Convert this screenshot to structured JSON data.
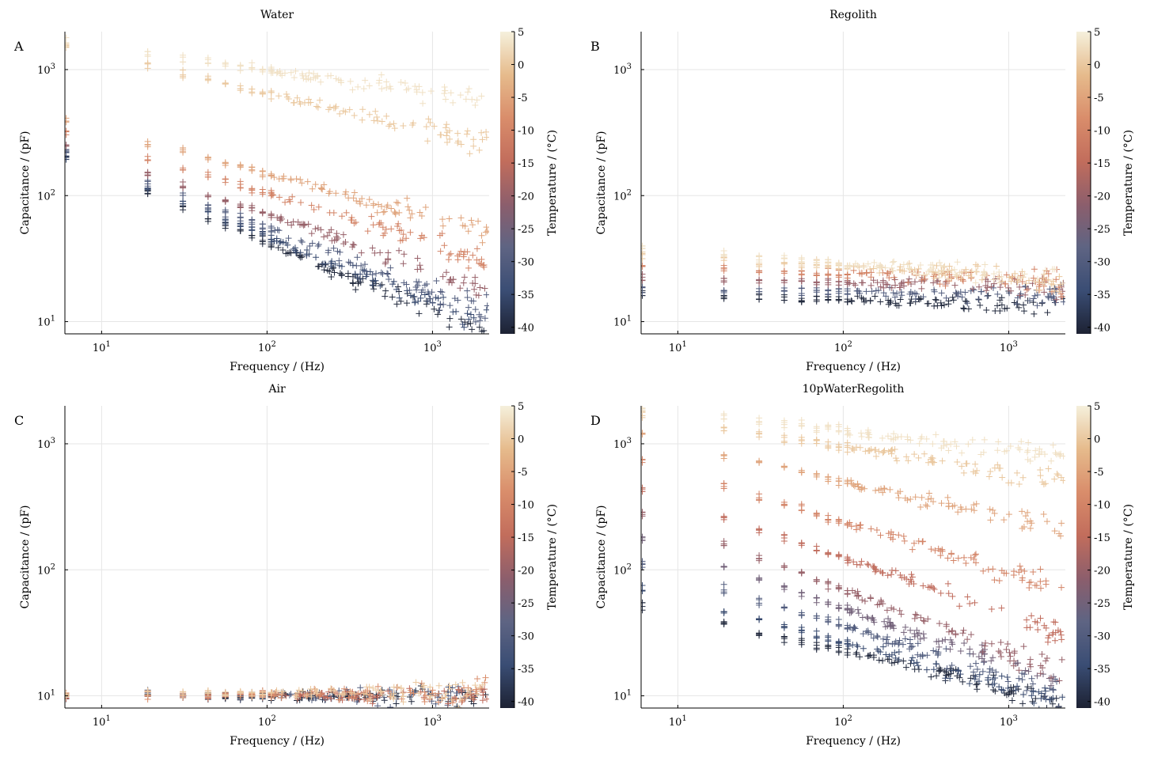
{
  "figure": {
    "background": "#ffffff"
  },
  "colorbar": {
    "label": "Temperature / (°C)",
    "range": [
      -41,
      5
    ],
    "ticks": [
      5,
      0,
      -5,
      -10,
      -15,
      -20,
      -25,
      -30,
      -35,
      -40
    ],
    "tick_labels": [
      "5",
      "0",
      "-5",
      "-10",
      "-15",
      "-20",
      "-25",
      "-30",
      "-35",
      "-40"
    ],
    "colormap": [
      "#1d2233",
      "#3a4d74",
      "#5e6483",
      "#8c5e6c",
      "#c26d5c",
      "#d98d6b",
      "#e6bb8c",
      "#f5f0dc"
    ]
  },
  "chart_data": [
    {
      "type": "scatter",
      "panel": "A",
      "title": "Water",
      "xlabel": "Frequency / (Hz)",
      "ylabel": "Capacitance / (pF)",
      "xscale": "log",
      "yscale": "log",
      "xlim": [
        6,
        2200
      ],
      "ylim": [
        8,
        2000
      ],
      "x_ticks": [
        "10^1",
        "10^2",
        "10^3"
      ],
      "y_ticks": [
        "10^1",
        "10^2",
        "10^3"
      ],
      "grid": true,
      "marker": "+",
      "sweep_frequencies": [
        6.1,
        19,
        31,
        44,
        56,
        69,
        81,
        94,
        106
      ],
      "series": [
        {
          "temp": -40,
          "c_at_10hz": 150,
          "slope": -0.55
        },
        {
          "temp": -35,
          "c_at_10hz": 160,
          "slope": -0.53
        },
        {
          "temp": -30,
          "c_at_10hz": 175,
          "slope": -0.5
        },
        {
          "temp": -20,
          "c_at_10hz": 200,
          "slope": -0.45
        },
        {
          "temp": -10,
          "c_at_10hz": 260,
          "slope": -0.4
        },
        {
          "temp": -5,
          "c_at_10hz": 330,
          "slope": -0.35
        },
        {
          "temp": 0,
          "c_at_10hz": 1300,
          "slope": -0.3
        },
        {
          "temp": 3,
          "c_at_10hz": 1500,
          "slope": -0.18
        }
      ]
    },
    {
      "type": "scatter",
      "panel": "B",
      "title": "Regolith",
      "xlabel": "Frequency / (Hz)",
      "ylabel": "Capacitance / (pF)",
      "xscale": "log",
      "yscale": "log",
      "xlim": [
        6,
        2200
      ],
      "ylim": [
        8,
        2000
      ],
      "x_ticks": [
        "10^1",
        "10^2",
        "10^3"
      ],
      "y_ticks": [
        "10^1",
        "10^2",
        "10^3"
      ],
      "grid": true,
      "marker": "+",
      "sweep_frequencies": [
        6.1,
        19,
        31,
        44,
        56,
        69,
        81,
        94,
        106
      ],
      "series": [
        {
          "temp": -40,
          "c_at_10hz": 16,
          "slope": -0.03
        },
        {
          "temp": -30,
          "c_at_10hz": 18,
          "slope": -0.02
        },
        {
          "temp": -20,
          "c_at_10hz": 22,
          "slope": -0.03
        },
        {
          "temp": -10,
          "c_at_10hz": 27,
          "slope": -0.05
        },
        {
          "temp": 0,
          "c_at_10hz": 33,
          "slope": -0.08
        },
        {
          "temp": 3,
          "c_at_10hz": 36,
          "slope": -0.09
        }
      ]
    },
    {
      "type": "scatter",
      "panel": "C",
      "title": "Air",
      "xlabel": "Frequency / (Hz)",
      "ylabel": "Capacitance / (pF)",
      "xscale": "log",
      "yscale": "log",
      "xlim": [
        6,
        2200
      ],
      "ylim": [
        8,
        2000
      ],
      "x_ticks": [
        "10^1",
        "10^2",
        "10^3"
      ],
      "y_ticks": [
        "10^1",
        "10^2",
        "10^3"
      ],
      "grid": true,
      "marker": "+",
      "sweep_frequencies": [
        6.1,
        19,
        31,
        44,
        56,
        69,
        81,
        94,
        106
      ],
      "series": [
        {
          "temp": -40,
          "c_at_10hz": 9.9,
          "slope": 0.0
        },
        {
          "temp": -30,
          "c_at_10hz": 10.0,
          "slope": 0.0
        },
        {
          "temp": -15,
          "c_at_10hz": 10.1,
          "slope": 0.0
        },
        {
          "temp": -8,
          "c_at_10hz": 10.2,
          "slope": 0.005
        },
        {
          "temp": 0,
          "c_at_10hz": 10.3,
          "slope": 0.01
        }
      ]
    },
    {
      "type": "scatter",
      "panel": "D",
      "title": "10pWaterRegolith",
      "xlabel": "Frequency / (Hz)",
      "ylabel": "Capacitance / (pF)",
      "xscale": "log",
      "yscale": "log",
      "xlim": [
        6,
        2200
      ],
      "ylim": [
        8,
        2000
      ],
      "x_ticks": [
        "10^1",
        "10^2",
        "10^3"
      ],
      "y_ticks": [
        "10^1",
        "10^2",
        "10^3"
      ],
      "grid": true,
      "marker": "+",
      "sweep_frequencies": [
        6.1,
        19,
        31,
        44,
        56,
        69,
        81,
        94,
        106
      ],
      "series": [
        {
          "temp": -40,
          "c_at_10hz": 45,
          "slope": -0.3
        },
        {
          "temp": -35,
          "c_at_10hz": 60,
          "slope": -0.35
        },
        {
          "temp": -30,
          "c_at_10hz": 90,
          "slope": -0.4
        },
        {
          "temp": -25,
          "c_at_10hz": 140,
          "slope": -0.45
        },
        {
          "temp": -20,
          "c_at_10hz": 220,
          "slope": -0.5
        },
        {
          "temp": -15,
          "c_at_10hz": 350,
          "slope": -0.45
        },
        {
          "temp": -10,
          "c_at_10hz": 600,
          "slope": -0.4
        },
        {
          "temp": -5,
          "c_at_10hz": 1000,
          "slope": -0.3
        },
        {
          "temp": 0,
          "c_at_10hz": 1500,
          "slope": -0.2
        },
        {
          "temp": 3,
          "c_at_10hz": 1800,
          "slope": -0.15
        }
      ]
    }
  ]
}
